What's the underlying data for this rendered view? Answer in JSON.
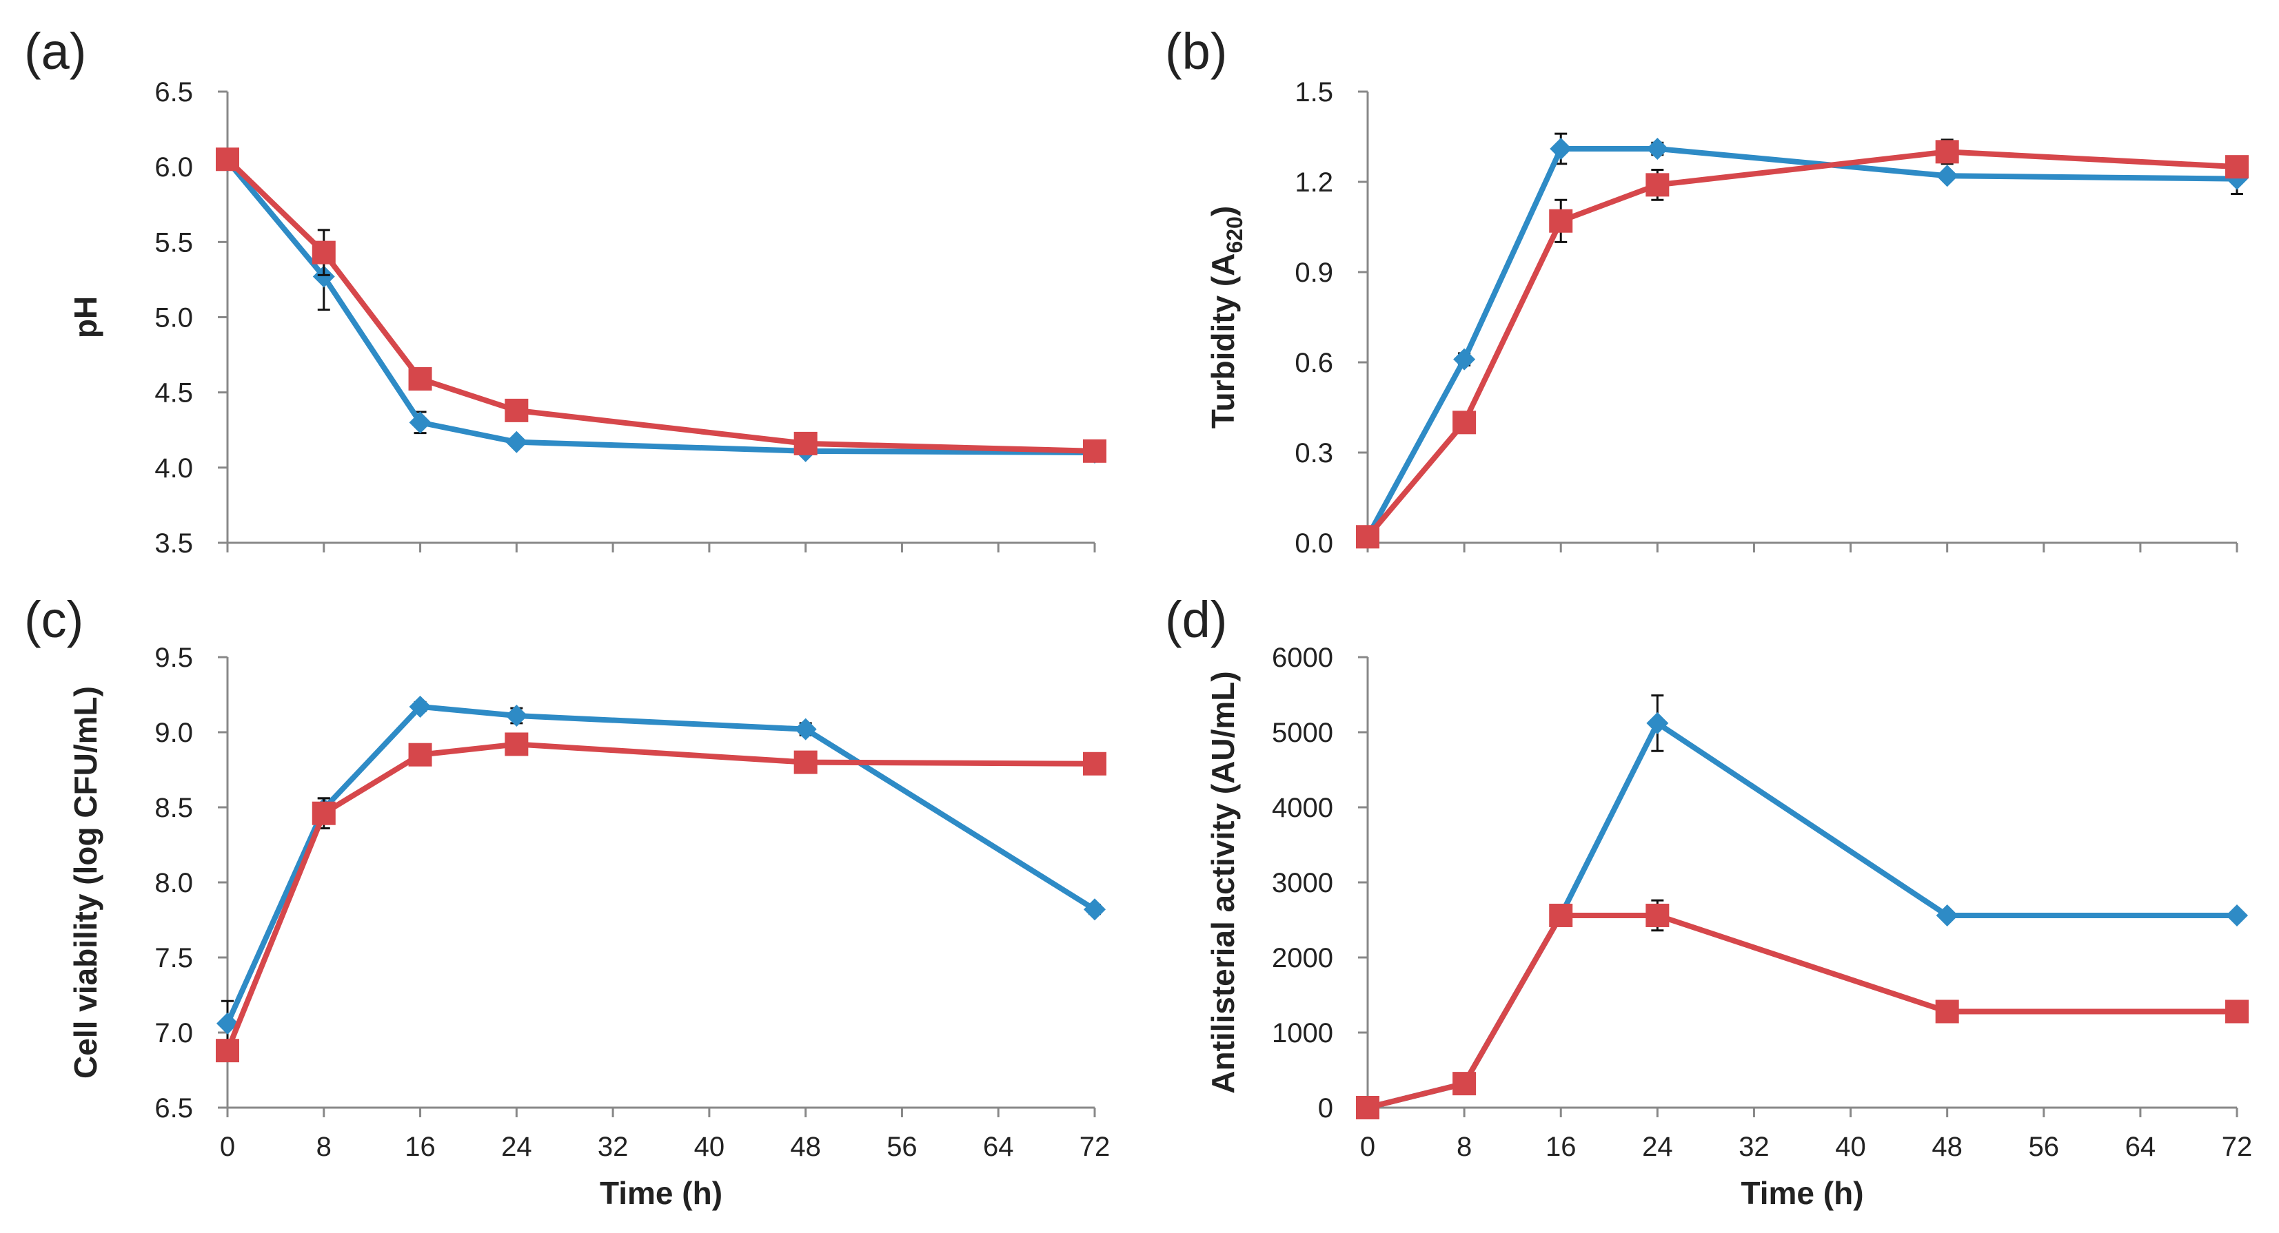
{
  "chart_data": [
    {
      "type": "line",
      "panel_label": "(a)",
      "xlabel": "",
      "ylabel": "pH",
      "xlim": [
        0,
        72
      ],
      "ylim": [
        3.5,
        6.5
      ],
      "x_ticks": [
        "0",
        "8",
        "16",
        "24",
        "32",
        "40",
        "48",
        "56",
        "64",
        "72"
      ],
      "y_ticks": [
        "3.5",
        "4.0",
        "4.5",
        "5.0",
        "5.5",
        "6.0",
        "6.5"
      ],
      "grid": false,
      "series": [
        {
          "name": "blue",
          "color": "#2E8BC6",
          "marker": "diamond",
          "x": [
            0,
            8,
            16,
            24,
            48,
            72
          ],
          "y": [
            6.04,
            5.27,
            4.3,
            4.17,
            4.11,
            4.1
          ],
          "err": [
            0.02,
            0.22,
            0.07,
            0.02,
            0.02,
            0.02
          ]
        },
        {
          "name": "red",
          "color": "#D6474B",
          "marker": "square",
          "x": [
            0,
            8,
            16,
            24,
            48,
            72
          ],
          "y": [
            6.05,
            5.43,
            4.59,
            4.38,
            4.16,
            4.11
          ],
          "err": [
            0.02,
            0.15,
            0.03,
            0.03,
            0.02,
            0.02
          ]
        }
      ]
    },
    {
      "type": "line",
      "panel_label": "(b)",
      "xlabel": "",
      "ylabel": "Turbidity (A",
      "ylabel_sub": "620",
      "ylabel_end": ")",
      "xlim": [
        0,
        72
      ],
      "ylim": [
        0,
        1.5
      ],
      "x_ticks": [
        "0",
        "8",
        "16",
        "24",
        "32",
        "40",
        "48",
        "56",
        "64",
        "72"
      ],
      "y_ticks": [
        "0.0",
        "0.3",
        "0.6",
        "0.9",
        "1.2",
        "1.5"
      ],
      "grid": false,
      "series": [
        {
          "name": "blue",
          "color": "#2E8BC6",
          "marker": "diamond",
          "x": [
            0,
            8,
            16,
            24,
            48,
            72
          ],
          "y": [
            0.02,
            0.61,
            1.31,
            1.31,
            1.22,
            1.21
          ],
          "err": [
            0.01,
            0.02,
            0.05,
            0.02,
            0.01,
            0.05
          ]
        },
        {
          "name": "red",
          "color": "#D6474B",
          "marker": "square",
          "x": [
            0,
            8,
            16,
            24,
            48,
            72
          ],
          "y": [
            0.02,
            0.4,
            1.07,
            1.19,
            1.3,
            1.25
          ],
          "err": [
            0.01,
            0.02,
            0.07,
            0.05,
            0.04,
            0.03
          ]
        }
      ]
    },
    {
      "type": "line",
      "panel_label": "(c)",
      "xlabel": "Time (h)",
      "ylabel": "Cell viability (log CFU/mL)",
      "xlim": [
        0,
        72
      ],
      "ylim": [
        6.5,
        9.5
      ],
      "x_ticks": [
        "0",
        "8",
        "16",
        "24",
        "32",
        "40",
        "48",
        "56",
        "64",
        "72"
      ],
      "y_ticks": [
        "6.5",
        "7.0",
        "7.5",
        "8.0",
        "8.5",
        "9.0",
        "9.5"
      ],
      "grid": false,
      "series": [
        {
          "name": "blue",
          "color": "#2E8BC6",
          "marker": "diamond",
          "x": [
            0,
            8,
            16,
            24,
            48,
            72
          ],
          "y": [
            7.06,
            8.49,
            9.17,
            9.11,
            9.02,
            7.82
          ],
          "err": [
            0.15,
            0.07,
            0.03,
            0.05,
            0.04,
            0.03
          ]
        },
        {
          "name": "red",
          "color": "#D6474B",
          "marker": "square",
          "x": [
            0,
            8,
            16,
            24,
            48,
            72
          ],
          "y": [
            6.88,
            8.46,
            8.85,
            8.92,
            8.8,
            8.79
          ],
          "err": [
            0.05,
            0.1,
            0.03,
            0.03,
            0.03,
            0.07
          ]
        }
      ]
    },
    {
      "type": "line",
      "panel_label": "(d)",
      "xlabel": "Time (h)",
      "ylabel": "Antilisterial activity (AU/mL)",
      "xlim": [
        0,
        72
      ],
      "ylim": [
        0,
        6000
      ],
      "x_ticks": [
        "0",
        "8",
        "16",
        "24",
        "32",
        "40",
        "48",
        "56",
        "64",
        "72"
      ],
      "y_ticks": [
        "0",
        "1000",
        "2000",
        "3000",
        "4000",
        "5000",
        "6000"
      ],
      "grid": false,
      "series": [
        {
          "name": "blue",
          "color": "#2E8BC6",
          "marker": "diamond",
          "x": [
            0,
            8,
            16,
            24,
            48,
            72
          ],
          "y": [
            0,
            320,
            2560,
            5120,
            2560,
            2560
          ],
          "err": [
            0,
            0,
            0,
            370,
            0,
            0
          ]
        },
        {
          "name": "red",
          "color": "#D6474B",
          "marker": "square",
          "x": [
            0,
            8,
            16,
            24,
            48,
            72
          ],
          "y": [
            0,
            320,
            2560,
            2560,
            1280,
            1280
          ],
          "err": [
            0,
            0,
            0,
            200,
            0,
            0
          ]
        }
      ]
    }
  ]
}
